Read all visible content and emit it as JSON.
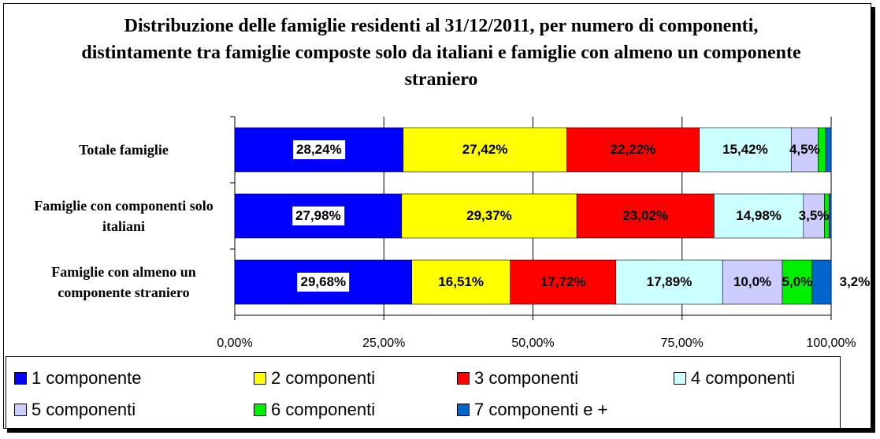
{
  "chart_data": {
    "type": "stacked-bar-horizontal",
    "title": "Distribuzione delle famiglie residenti al 31/12/2011, per numero di componenti, distintamente tra famiglie composte solo da italiani e famiglie con almeno un componente straniero",
    "categories": [
      "Totale famiglie",
      "Famiglie con componenti solo italiani",
      "Famiglie con almeno un componente straniero"
    ],
    "series": [
      {
        "name": "1 componente",
        "color": "#0000ff",
        "values": [
          28.24,
          27.98,
          29.68
        ],
        "value_labels": [
          "28,24%",
          "27,98%",
          "29,68%"
        ]
      },
      {
        "name": "2 componenti",
        "color": "#ffff00",
        "values": [
          27.42,
          29.37,
          16.51
        ],
        "value_labels": [
          "27,42%",
          "29,37%",
          "16,51%"
        ]
      },
      {
        "name": "3 componenti",
        "color": "#ff0000",
        "values": [
          22.22,
          23.02,
          17.72
        ],
        "value_labels": [
          "22,22%",
          "23,02%",
          "17,72%"
        ]
      },
      {
        "name": "4 componenti",
        "color": "#ccffff",
        "values": [
          15.42,
          14.98,
          17.89
        ],
        "value_labels": [
          "15,42%",
          "14,98%",
          "17,89%"
        ]
      },
      {
        "name": "5 componenti",
        "color": "#ccccff",
        "values": [
          4.5,
          3.5,
          10.0
        ],
        "value_labels": [
          "4,5%",
          "3,5%",
          "10,0%"
        ]
      },
      {
        "name": "6 componenti",
        "color": "#00ee00",
        "values": [
          1.3,
          0.8,
          5.0
        ],
        "value_labels": [
          null,
          null,
          "5,0%"
        ]
      },
      {
        "name": "7 componenti e +",
        "color": "#0066cc",
        "values": [
          0.9,
          0.35,
          3.2
        ],
        "value_labels": [
          null,
          null,
          "3,2%"
        ]
      }
    ],
    "xlim": [
      0,
      100
    ],
    "xticks": [
      {
        "value": 0,
        "label": "0,00%"
      },
      {
        "value": 25,
        "label": "25,00%"
      },
      {
        "value": 50,
        "label": "50,00%"
      },
      {
        "value": 75,
        "label": "75,00%"
      },
      {
        "value": 100,
        "label": "100,00%"
      }
    ],
    "grid": true,
    "legend": "bottom"
  }
}
